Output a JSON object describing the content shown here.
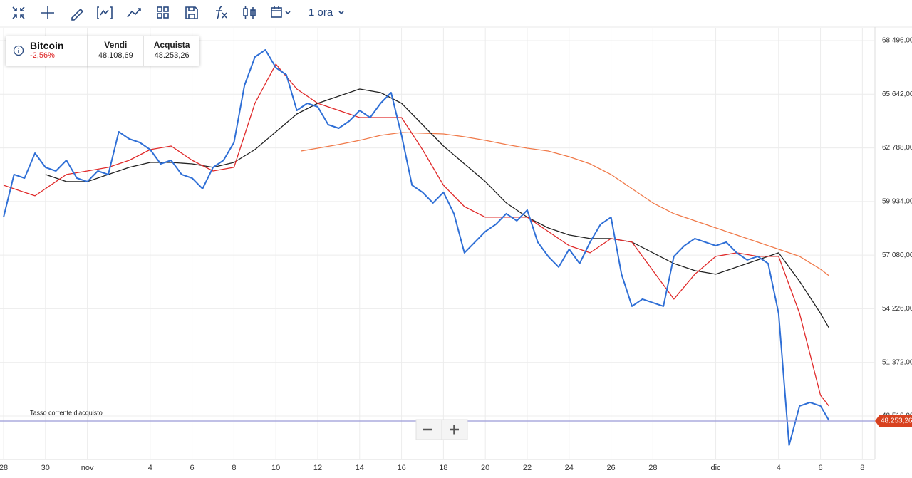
{
  "toolbar": {
    "interval": "1 ora"
  },
  "quote": {
    "name": "Bitcoin",
    "change": "-2,56%",
    "sell_label": "Vendi",
    "sell": "48.108,69",
    "buy_label": "Acquista",
    "buy": "48.253,26"
  },
  "chart_data": {
    "type": "line",
    "annotation": "Tasso corrente d'acquisto",
    "current_rate": {
      "value": 48253.26,
      "label": "48.253,26"
    },
    "xlim": [
      -0.17,
      41.6
    ],
    "ylim": [
      46206,
      69140
    ],
    "grid": true,
    "xticks": [
      {
        "value": 0,
        "label": "28"
      },
      {
        "value": 2,
        "label": "30"
      },
      {
        "value": 4,
        "label": "nov"
      },
      {
        "value": 7,
        "label": "4"
      },
      {
        "value": 9,
        "label": "6"
      },
      {
        "value": 11,
        "label": "8"
      },
      {
        "value": 13,
        "label": "10"
      },
      {
        "value": 15,
        "label": "12"
      },
      {
        "value": 17,
        "label": "14"
      },
      {
        "value": 19,
        "label": "16"
      },
      {
        "value": 21,
        "label": "18"
      },
      {
        "value": 23,
        "label": "20"
      },
      {
        "value": 25,
        "label": "22"
      },
      {
        "value": 27,
        "label": "24"
      },
      {
        "value": 29,
        "label": "26"
      },
      {
        "value": 31,
        "label": "28"
      },
      {
        "value": 34,
        "label": "dic"
      },
      {
        "value": 37,
        "label": "4"
      },
      {
        "value": 39,
        "label": "6"
      },
      {
        "value": 41,
        "label": "8"
      }
    ],
    "yticks": [
      {
        "value": 48518,
        "label": "48.518,00"
      },
      {
        "value": 51372,
        "label": "51.372,00"
      },
      {
        "value": 54226,
        "label": "54.226,00"
      },
      {
        "value": 57080,
        "label": "57.080,00"
      },
      {
        "value": 59934,
        "label": "59.934,00"
      },
      {
        "value": 62788,
        "label": "62.788,00"
      },
      {
        "value": 65642,
        "label": "65.642,00"
      },
      {
        "value": 68496,
        "label": "68.496,00"
      }
    ],
    "series": [
      {
        "color": "#f07a4a",
        "x": [
          14.2,
          15,
          16,
          17,
          18,
          19,
          20,
          21,
          22,
          23,
          24,
          25,
          26,
          27,
          28,
          29,
          30,
          31,
          32,
          33,
          34,
          35,
          36,
          37,
          38,
          39,
          39.4
        ],
        "values": [
          62621,
          62773,
          62963,
          63190,
          63455,
          63607,
          63569,
          63531,
          63379,
          63190,
          62963,
          62773,
          62621,
          62318,
          61939,
          61371,
          60613,
          59855,
          59286,
          58907,
          58528,
          58149,
          57770,
          57391,
          57012,
          56330,
          55989
        ]
      },
      {
        "color": "#222222",
        "x": [
          2,
          3,
          4,
          5,
          6,
          7,
          8,
          9,
          10,
          11,
          12,
          13,
          14,
          15,
          16,
          17,
          18,
          19,
          20,
          21,
          22,
          23,
          24,
          25,
          26,
          27,
          28,
          29,
          30,
          31,
          32,
          33,
          34,
          35,
          36,
          37,
          38,
          39,
          39.4
        ],
        "values": [
          61371,
          60992,
          60992,
          61371,
          61750,
          62015,
          62015,
          61939,
          61750,
          62015,
          62697,
          63645,
          64592,
          65161,
          65540,
          65919,
          65729,
          65161,
          64024,
          62887,
          61939,
          60992,
          59855,
          59097,
          58528,
          58149,
          57960,
          57960,
          57770,
          57202,
          56633,
          56254,
          56065,
          56444,
          56823,
          57202,
          55686,
          53980,
          53222
        ]
      },
      {
        "color": "#e02a2a",
        "x": [
          0,
          1,
          1.5,
          2,
          3,
          4,
          5,
          6,
          7,
          8,
          9,
          10,
          11,
          12,
          13,
          14,
          15,
          16,
          17,
          18,
          19,
          20,
          21,
          22,
          23,
          24,
          25,
          26,
          27,
          28,
          29,
          30,
          31,
          32,
          33,
          34,
          35,
          36,
          37,
          38,
          39,
          39.4
        ],
        "values": [
          60802,
          60423,
          60234,
          60613,
          61371,
          61560,
          61750,
          62129,
          62697,
          62887,
          62129,
          61560,
          61750,
          65161,
          67245,
          65919,
          65161,
          64782,
          64403,
          64403,
          64403,
          62697,
          60802,
          59665,
          59097,
          59097,
          59097,
          58339,
          57581,
          57202,
          57960,
          57770,
          56254,
          54738,
          56065,
          57012,
          57202,
          57012,
          57012,
          53980,
          49622,
          49053
        ]
      },
      {
        "color": "#2f6fd6",
        "x": [
          0,
          0.5,
          1,
          1.5,
          2,
          2.5,
          3,
          3.5,
          4,
          4.5,
          5,
          5.5,
          6,
          6.5,
          7,
          7.5,
          8,
          8.5,
          9,
          9.5,
          10,
          10.5,
          11,
          11.5,
          12,
          12.5,
          13,
          13.5,
          14,
          14.5,
          15,
          15.5,
          16,
          16.5,
          17,
          17.5,
          18,
          18.5,
          19,
          19.5,
          20,
          20.5,
          21,
          21.5,
          22,
          22.5,
          23,
          23.5,
          24,
          24.5,
          25,
          25.5,
          26,
          26.5,
          27,
          27.5,
          28,
          28.5,
          29,
          29.5,
          30,
          30.5,
          31,
          31.5,
          32,
          32.5,
          33,
          33.5,
          34,
          34.5,
          35,
          35.5,
          36,
          36.5,
          37,
          37.5,
          38,
          38.5,
          39,
          39.4
        ],
        "values": [
          59097,
          61371,
          61181,
          62508,
          61750,
          61560,
          62129,
          61181,
          60992,
          61560,
          61371,
          63645,
          63266,
          63076,
          62697,
          61939,
          62129,
          61371,
          61181,
          60613,
          61750,
          62129,
          63076,
          66108,
          67624,
          68003,
          67056,
          66677,
          64782,
          65161,
          64971,
          64024,
          63834,
          64213,
          64782,
          64403,
          65161,
          65729,
          63455,
          60802,
          60423,
          59855,
          60423,
          59286,
          57202,
          57770,
          58339,
          58718,
          59286,
          58907,
          59476,
          57770,
          57012,
          56444,
          57391,
          56633,
          57770,
          58718,
          59097,
          56065,
          54359,
          54738,
          54549,
          54359,
          57012,
          57581,
          57960,
          57770,
          57581,
          57770,
          57202,
          56823,
          57012,
          56633,
          53980,
          46969,
          49053,
          49243,
          49053,
          48295
        ]
      }
    ]
  }
}
